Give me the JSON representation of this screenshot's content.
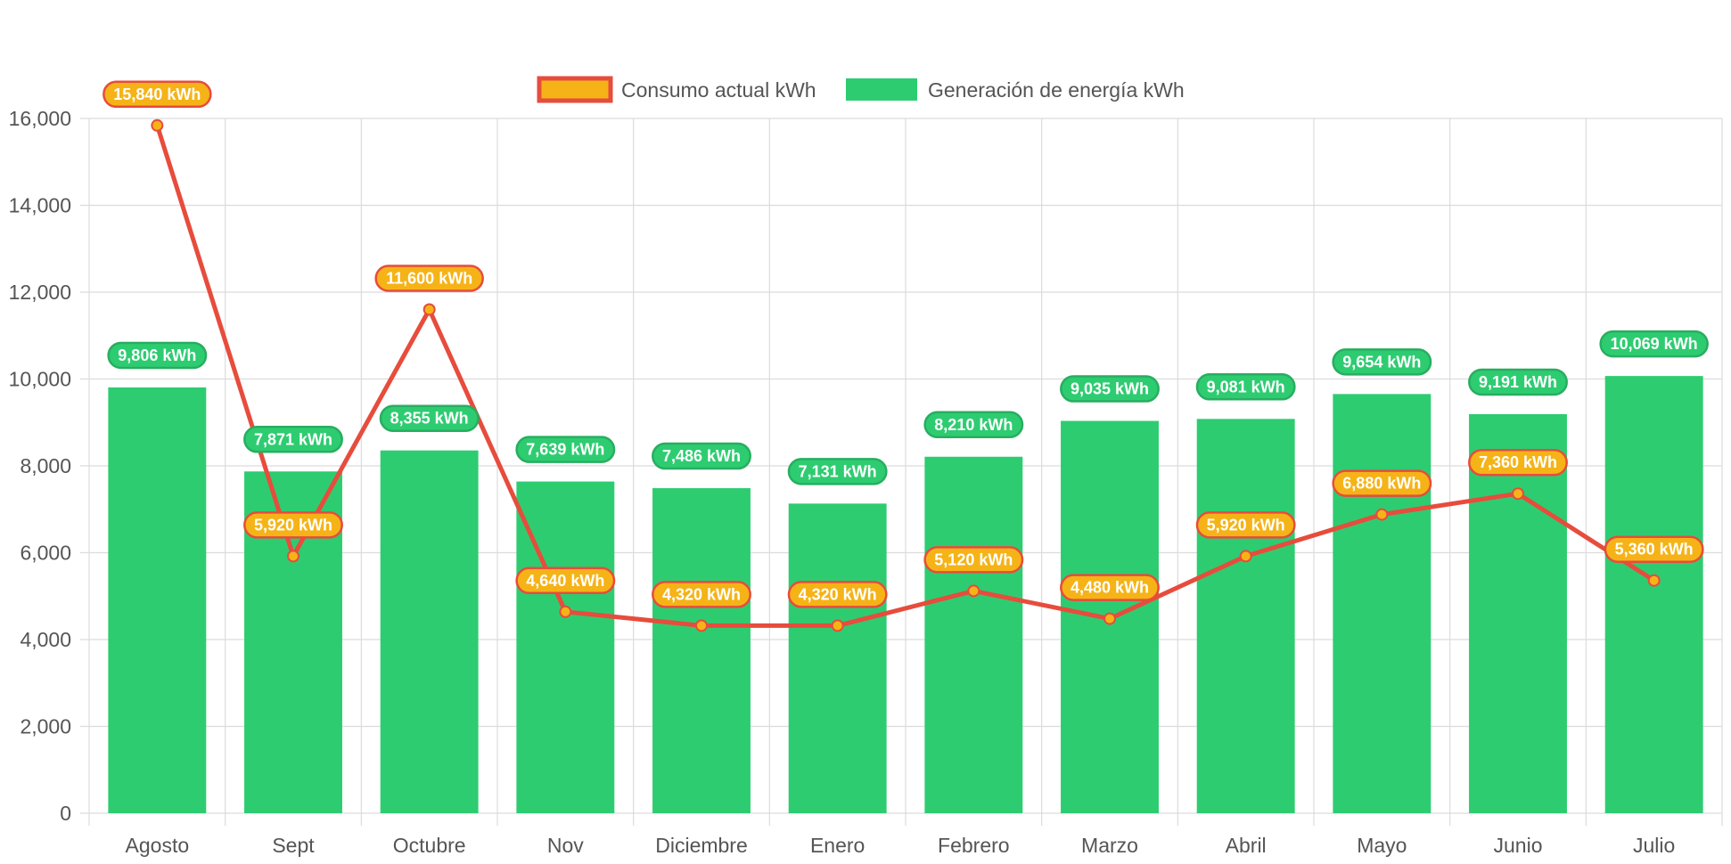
{
  "chart_data": {
    "type": "bar",
    "categories": [
      "Agosto",
      "Sept",
      "Octubre",
      "Nov",
      "Diciembre",
      "Enero",
      "Febrero",
      "Marzo",
      "Abril",
      "Mayo",
      "Junio",
      "Julio"
    ],
    "ylim": [
      0,
      16000
    ],
    "yticks": [
      0,
      2000,
      4000,
      6000,
      8000,
      10000,
      12000,
      14000,
      16000
    ],
    "ytick_labels": [
      "0",
      "2,000",
      "4,000",
      "6,000",
      "8,000",
      "10,000",
      "12,000",
      "14,000",
      "16,000"
    ],
    "grid": true,
    "legend_position": "top-center",
    "title": "",
    "xlabel": "",
    "ylabel": "",
    "series": [
      {
        "name": "Consumo actual kWh",
        "type": "line",
        "color": "#e74c3c",
        "point_color": "#f5b317",
        "values": [
          15840,
          5920,
          11600,
          4640,
          4320,
          4320,
          5120,
          4480,
          5920,
          6880,
          7360,
          5360
        ],
        "labels": [
          "15,840 kWh",
          "5,920 kWh",
          "11,600 kWh",
          "4,640 kWh",
          "4,320 kWh",
          "4,320 kWh",
          "5,120 kWh",
          "4,480 kWh",
          "5,920 kWh",
          "6,880 kWh",
          "7,360 kWh",
          "5,360 kWh"
        ]
      },
      {
        "name": "Generación de energía kWh",
        "type": "bar",
        "color": "#2ecc71",
        "values": [
          9806,
          7871,
          8355,
          7639,
          7486,
          7131,
          8210,
          9035,
          9081,
          9654,
          9191,
          10069
        ],
        "labels": [
          "9,806 kWh",
          "7,871 kWh",
          "8,355 kWh",
          "7,639 kWh",
          "7,486 kWh",
          "7,131 kWh",
          "8,210 kWh",
          "9,035 kWh",
          "9,081 kWh",
          "9,654 kWh",
          "9,191 kWh",
          "10,069 kWh"
        ]
      }
    ]
  }
}
